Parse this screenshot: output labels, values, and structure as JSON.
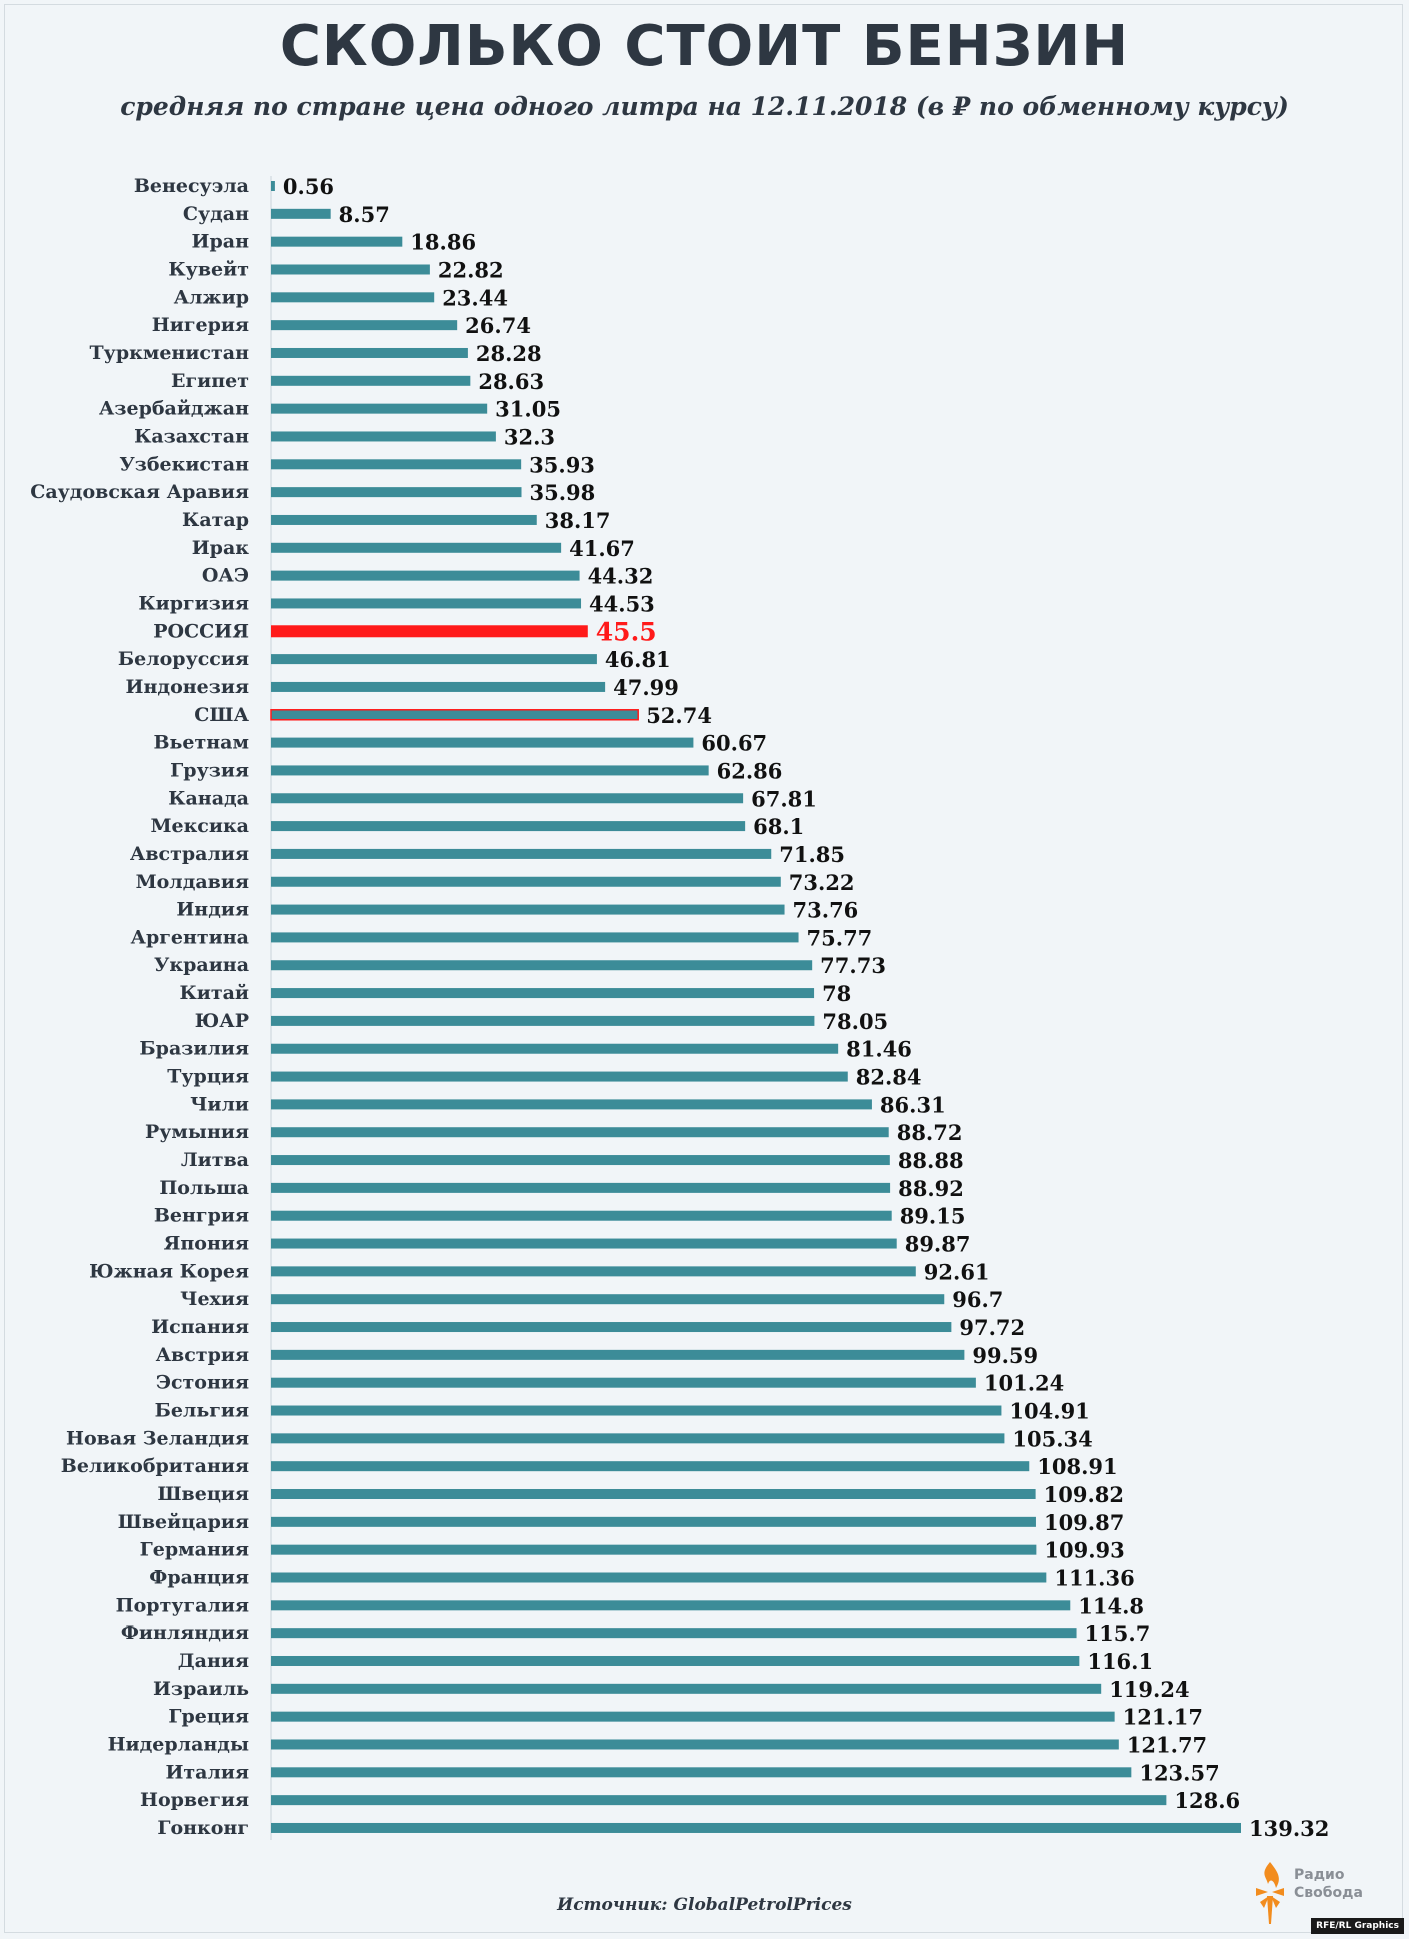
{
  "header": {
    "title": "СКОЛЬКО СТОИТ БЕНЗИН",
    "subtitle": "средняя по стране цена одного литра на 12.11.2018 (в ₽ по обменному курсу)"
  },
  "footer": {
    "source": "Источник: GlobalPetrolPrices",
    "logo_line1": "Радио",
    "logo_line2": "Свобода",
    "credit": "RFE/RL Graphics"
  },
  "colors": {
    "bar": "#3c8c98",
    "highlight": "#ff1a1a",
    "usa_fill": "#3c8c98",
    "usa_stroke": "#ff1a1a",
    "logo": "#f28c1e"
  },
  "chart_data": {
    "type": "bar",
    "orientation": "horizontal",
    "title": "СКОЛЬКО СТОИТ БЕНЗИН",
    "subtitle": "средняя по стране цена одного литра на 12.11.2018 (в ₽ по обменному курсу)",
    "xlabel": "",
    "ylabel": "",
    "xlim": [
      0,
      140
    ],
    "highlight": "РОССИЯ",
    "outlined": "США",
    "categories": [
      "Венесуэла",
      "Судан",
      "Иран",
      "Кувейт",
      "Алжир",
      "Нигерия",
      "Туркменистан",
      "Египет",
      "Азербайджан",
      "Казахстан",
      "Узбекистан",
      "Саудовская Аравия",
      "Катар",
      "Ирак",
      "ОАЭ",
      "Киргизия",
      "РОССИЯ",
      "Белоруссия",
      "Индонезия",
      "США",
      "Вьетнам",
      "Грузия",
      "Канада",
      "Мексика",
      "Австралия",
      "Молдавия",
      "Индия",
      "Аргентина",
      "Украина",
      "Китай",
      "ЮАР",
      "Бразилия",
      "Турция",
      "Чили",
      "Румыния",
      "Литва",
      "Польша",
      "Венгрия",
      "Япония",
      "Южная Корея",
      "Чехия",
      "Испания",
      "Австрия",
      "Эстония",
      "Бельгия",
      "Новая Зеландия",
      "Великобритания",
      "Швеция",
      "Швейцария",
      "Германия",
      "Франция",
      "Португалия",
      "Финляндия",
      "Дания",
      "Израиль",
      "Греция",
      "Нидерланды",
      "Италия",
      "Норвегия",
      "Гонконг"
    ],
    "values": [
      0.56,
      8.57,
      18.86,
      22.82,
      23.44,
      26.74,
      28.28,
      28.63,
      31.05,
      32.3,
      35.93,
      35.98,
      38.17,
      41.67,
      44.32,
      44.53,
      45.5,
      46.81,
      47.99,
      52.74,
      60.67,
      62.86,
      67.81,
      68.1,
      71.85,
      73.22,
      73.76,
      75.77,
      77.73,
      78,
      78.05,
      81.46,
      82.84,
      86.31,
      88.72,
      88.88,
      88.92,
      89.15,
      89.87,
      92.61,
      96.7,
      97.72,
      99.59,
      101.24,
      104.91,
      105.34,
      108.91,
      109.82,
      109.87,
      109.93,
      111.36,
      114.8,
      115.7,
      116.1,
      119.24,
      121.17,
      121.77,
      123.57,
      128.6,
      139.32
    ],
    "value_labels": [
      "0.56",
      "8.57",
      "18.86",
      "22.82",
      "23.44",
      "26.74",
      "28.28",
      "28.63",
      "31.05",
      "32.3",
      "35.93",
      "35.98",
      "38.17",
      "41.67",
      "44.32",
      "44.53",
      "45.5",
      "46.81",
      "47.99",
      "52.74",
      "60.67",
      "62.86",
      "67.81",
      "68.1",
      "71.85",
      "73.22",
      "73.76",
      "75.77",
      "77.73",
      "78",
      "78.05",
      "81.46",
      "82.84",
      "86.31",
      "88.72",
      "88.88",
      "88.92",
      "89.15",
      "89.87",
      "92.61",
      "96.7",
      "97.72",
      "99.59",
      "101.24",
      "104.91",
      "105.34",
      "108.91",
      "109.82",
      "109.87",
      "109.93",
      "111.36",
      "114.8",
      "115.7",
      "116.1",
      "119.24",
      "121.17",
      "121.77",
      "123.57",
      "128.6",
      "139.32"
    ]
  }
}
